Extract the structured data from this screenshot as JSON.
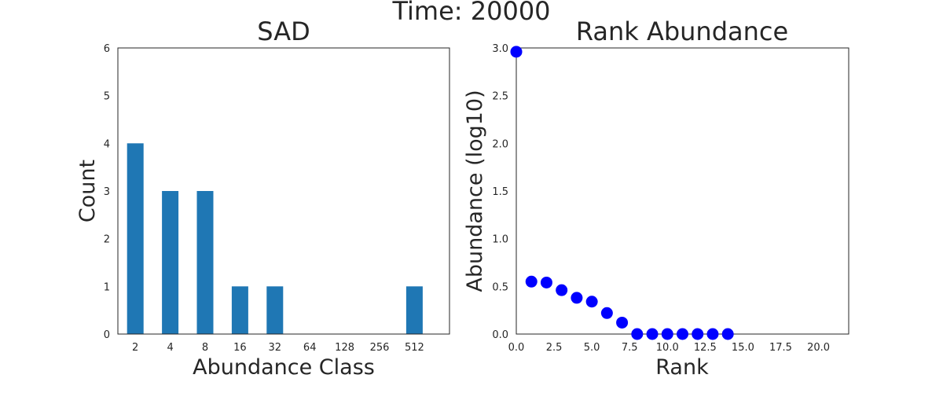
{
  "figure": {
    "suptitle": "Time: 20000"
  },
  "chart_data": [
    {
      "type": "bar",
      "title": "SAD",
      "xlabel": "Abundance Class",
      "ylabel": "Count",
      "categories": [
        "2",
        "4",
        "8",
        "16",
        "32",
        "64",
        "128",
        "256",
        "512"
      ],
      "values": [
        4,
        3,
        3,
        1,
        1,
        0,
        0,
        0,
        1
      ],
      "ylim": [
        0,
        6
      ],
      "yticks": [
        "0",
        "1",
        "2",
        "3",
        "4",
        "5",
        "6"
      ],
      "bar_color": "#1f77b4",
      "grid": false
    },
    {
      "type": "scatter",
      "title": "Rank Abundance",
      "xlabel": "Rank",
      "ylabel": "Abundance (log10)",
      "x": [
        0,
        1,
        2,
        3,
        4,
        5,
        6,
        7,
        8,
        9,
        10,
        11,
        12,
        13,
        14
      ],
      "y": [
        2.96,
        0.55,
        0.54,
        0.46,
        0.38,
        0.34,
        0.22,
        0.12,
        0,
        0,
        0,
        0,
        0,
        0,
        0
      ],
      "xlim": [
        0,
        22
      ],
      "ylim": [
        0,
        3.0
      ],
      "xticks": [
        "0.0",
        "2.5",
        "5.0",
        "7.5",
        "10.0",
        "12.5",
        "15.0",
        "17.5",
        "20.0"
      ],
      "yticks": [
        "0.0",
        "0.5",
        "1.0",
        "1.5",
        "2.0",
        "2.5",
        "3.0"
      ],
      "marker_color": "#0000ff",
      "grid": false
    }
  ]
}
